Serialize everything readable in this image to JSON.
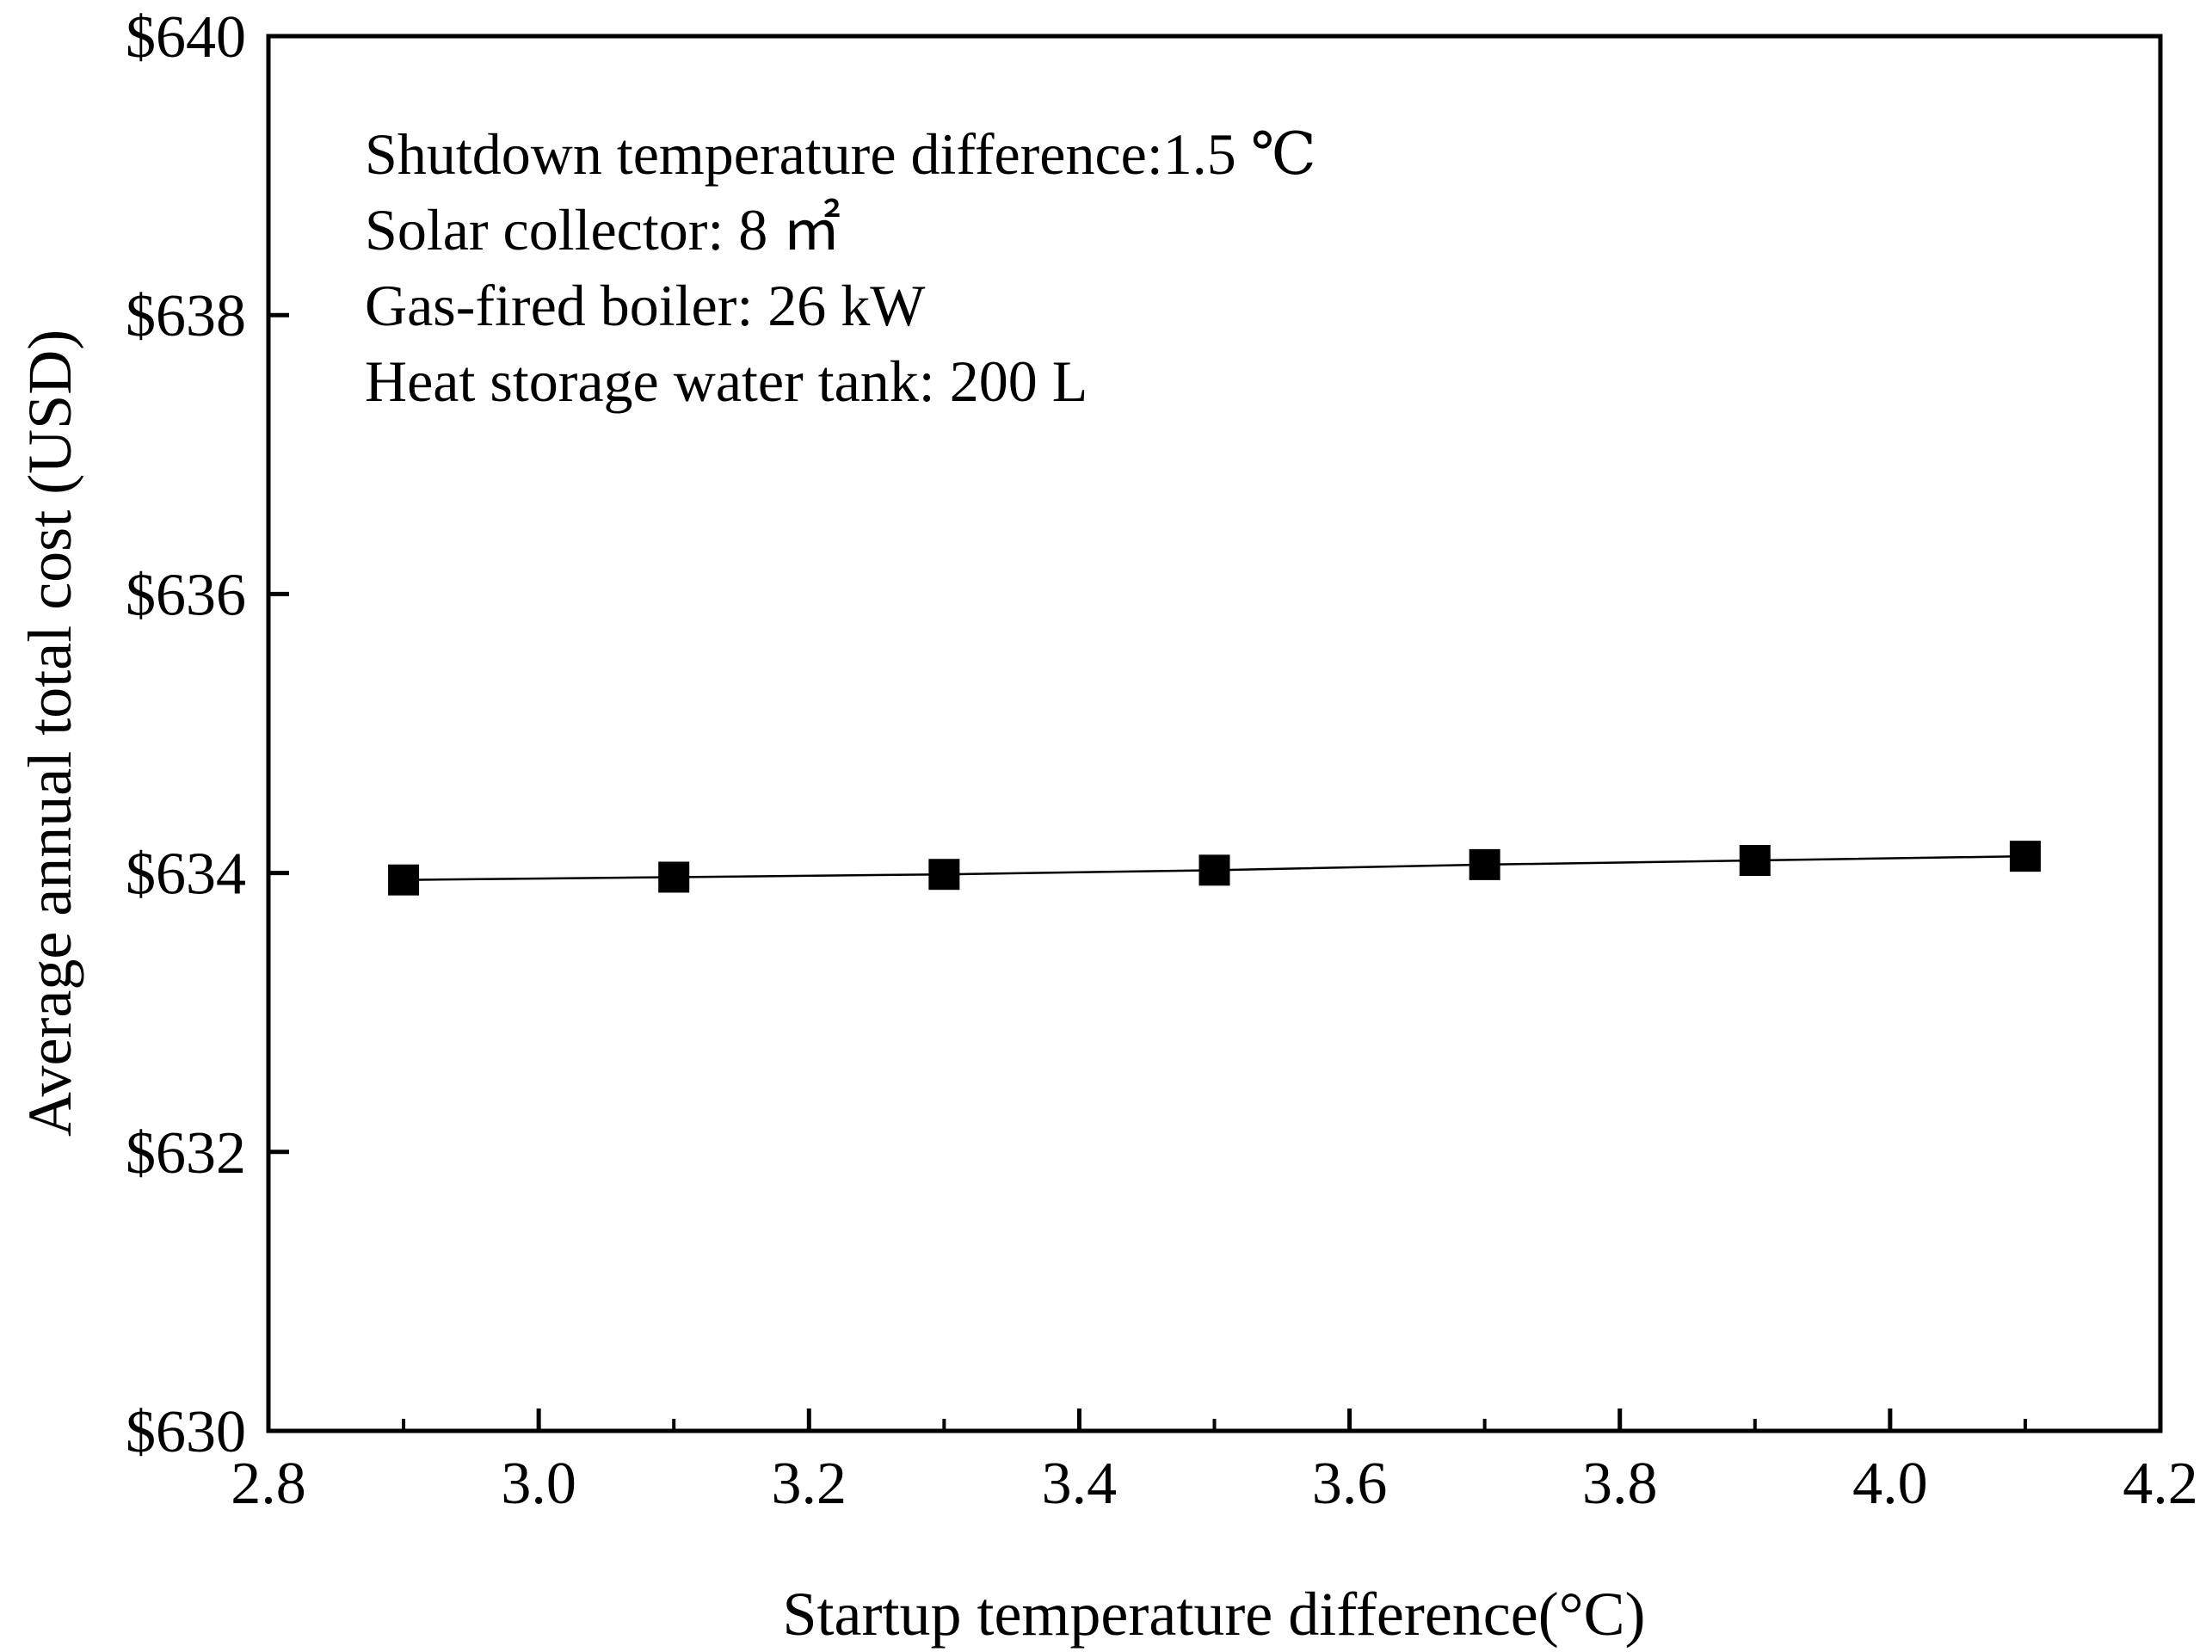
{
  "chart_data": {
    "type": "line",
    "xlabel": "Startup temperature difference(°C)",
    "ylabel": "Average annual total cost (USD)",
    "xlim": [
      2.8,
      4.2
    ],
    "ylim": [
      630,
      640
    ],
    "x_ticks": [
      "2.8",
      "3.0",
      "3.2",
      "3.4",
      "3.6",
      "3.8",
      "4.0",
      "4.2"
    ],
    "y_ticks": [
      "$630",
      "$632",
      "$634",
      "$636",
      "$638",
      "$640"
    ],
    "grid": false,
    "marker": "square",
    "colors": {
      "line": "#000000",
      "marker": "#000000",
      "axes": "#000000"
    },
    "series": [
      {
        "x": [
          2.9,
          3.1,
          3.3,
          3.5,
          3.7,
          3.9,
          4.1
        ],
        "values": [
          633.95,
          633.97,
          633.99,
          634.02,
          634.06,
          634.09,
          634.12
        ]
      }
    ],
    "annotations": [
      "Shutdown temperature difference:1.5 ℃",
      "Solar collector: 8 ㎡",
      "Gas-fired boiler: 26 kW",
      "Heat storage water tank: 200 L"
    ]
  }
}
